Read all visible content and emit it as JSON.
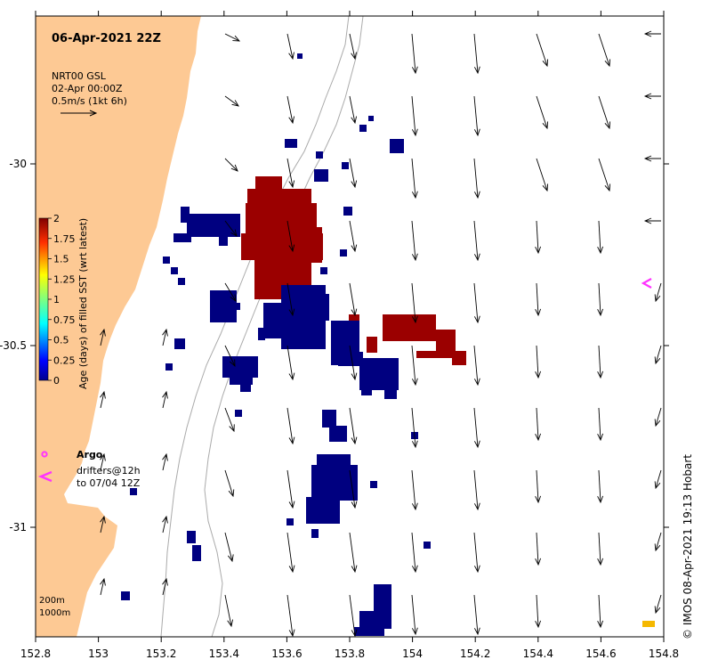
{
  "header": {
    "timestamp": "06-Apr-2021 22Z"
  },
  "product": {
    "name": "NRT00 GSL",
    "date": "02-Apr 00:00Z",
    "scale_label": "0.5m/s (1kt 6h)"
  },
  "colorbar": {
    "title": "Age (days) of filled SST (wrt latest)",
    "ticks": [
      "2",
      "1.75",
      "1.5",
      "1.25",
      "1",
      "0.75",
      "0.5",
      "0.25",
      "0"
    ]
  },
  "legend": {
    "argo_label": "Argo",
    "drifters_line1": "drifters@12h",
    "drifters_line2": "to 07/04 12Z",
    "depth_200": "200m",
    "depth_1000": "1000m"
  },
  "axes": {
    "x_ticks": [
      "152.8",
      "153",
      "153.2",
      "153.4",
      "153.6",
      "153.8",
      "154",
      "154.2",
      "154.4",
      "154.6",
      "154.8"
    ],
    "y_ticks": [
      "-30",
      "-30.5",
      "-31"
    ]
  },
  "credit": "©  IMOS 08-Apr-2021 19:13 Hobart",
  "colors": {
    "land": "#fdc994",
    "sst_recent": "#000080",
    "sst_old": "#9b0000",
    "argo": "#ff33ff",
    "drifter": "#ff33ff"
  }
}
